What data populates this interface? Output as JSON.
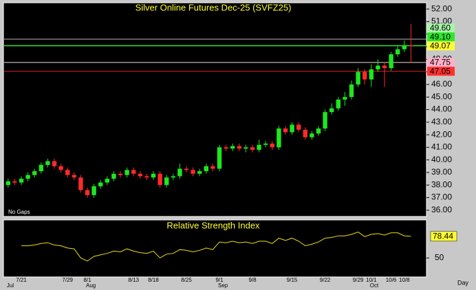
{
  "chart_data": [
    {
      "type": "candlestick",
      "title": "Silver Online Futures Dec-25 (SVFZ25)",
      "annotation": "No Gaps",
      "xlabel": "Day",
      "categories": [
        null,
        null,
        "7/21",
        null,
        null,
        null,
        null,
        null,
        null,
        "7/29",
        null,
        null,
        "8/1",
        null,
        null,
        null,
        null,
        null,
        null,
        "8/13",
        null,
        null,
        "8/18",
        null,
        null,
        null,
        null,
        "8/25",
        null,
        null,
        null,
        null,
        "9/1",
        null,
        null,
        null,
        null,
        "9/8",
        null,
        null,
        null,
        null,
        null,
        "9/15",
        null,
        null,
        null,
        null,
        "9/22",
        null,
        null,
        null,
        null,
        "9/29",
        null,
        "10/1",
        null,
        null,
        "10/6",
        null,
        "10/8",
        null
      ],
      "months": [
        "Jul",
        null,
        null,
        null,
        null,
        null,
        null,
        null,
        null,
        null,
        null,
        null,
        "Aug",
        null,
        null,
        null,
        null,
        null,
        null,
        null,
        null,
        null,
        null,
        null,
        null,
        null,
        null,
        null,
        null,
        null,
        null,
        null,
        "Sep",
        null,
        null,
        null,
        null,
        null,
        null,
        null,
        null,
        null,
        null,
        null,
        null,
        null,
        null,
        null,
        null,
        null,
        null,
        null,
        null,
        null,
        null,
        "Oct",
        null,
        null,
        null,
        null,
        null,
        null
      ],
      "open": [
        38.0,
        38.3,
        38.2,
        38.5,
        38.8,
        39.1,
        39.6,
        39.9,
        39.5,
        39.2,
        38.8,
        38.6,
        37.6,
        37.2,
        37.9,
        38.2,
        38.5,
        38.9,
        38.8,
        39.2,
        38.9,
        38.7,
        38.6,
        38.9,
        38.0,
        38.6,
        38.7,
        39.3,
        39.2,
        38.9,
        39.1,
        39.5,
        39.3,
        41.0,
        40.9,
        41.1,
        40.9,
        41.0,
        40.8,
        41.2,
        41.3,
        41.0,
        42.5,
        42.2,
        42.8,
        42.4,
        41.8,
        42.1,
        42.5,
        43.8,
        44.1,
        44.8,
        45.0,
        46.0,
        47.0,
        46.4,
        47.2,
        47.5,
        47.3,
        48.4,
        48.8,
        49.1
      ],
      "high": [
        38.5,
        38.5,
        38.7,
        39.0,
        39.3,
        39.8,
        40.1,
        40.1,
        39.7,
        39.4,
        39.0,
        38.8,
        37.8,
        38.1,
        38.4,
        38.7,
        39.1,
        39.1,
        39.4,
        39.4,
        39.1,
        38.9,
        39.1,
        39.1,
        38.8,
        38.9,
        39.7,
        39.5,
        39.4,
        39.3,
        39.7,
        39.7,
        41.2,
        41.2,
        41.3,
        41.3,
        41.2,
        41.2,
        41.6,
        41.5,
        41.5,
        42.7,
        42.7,
        43.0,
        43.0,
        42.6,
        42.3,
        42.7,
        44.0,
        44.5,
        45.0,
        45.4,
        46.3,
        47.3,
        47.2,
        47.6,
        48.0,
        47.8,
        48.6,
        49.1,
        49.5,
        50.8
      ],
      "low": [
        37.8,
        38.0,
        38.0,
        38.3,
        38.6,
        38.9,
        39.4,
        39.3,
        39.0,
        38.6,
        38.4,
        37.4,
        37.0,
        37.0,
        37.7,
        38.0,
        38.3,
        38.6,
        38.6,
        38.7,
        38.5,
        38.4,
        38.4,
        37.8,
        37.8,
        38.4,
        38.5,
        39.0,
        38.7,
        38.7,
        38.9,
        39.1,
        39.1,
        40.7,
        40.7,
        40.7,
        40.6,
        40.6,
        40.6,
        41.0,
        40.8,
        40.8,
        42.0,
        42.0,
        42.2,
        41.6,
        41.6,
        41.9,
        42.3,
        43.6,
        43.9,
        44.3,
        44.8,
        45.8,
        46.0,
        45.8,
        47.0,
        45.8,
        47.1,
        48.2,
        48.6,
        47.7
      ],
      "close": [
        38.3,
        38.2,
        38.5,
        38.8,
        39.1,
        39.6,
        39.9,
        39.5,
        39.2,
        38.8,
        38.6,
        37.6,
        37.2,
        37.9,
        38.2,
        38.5,
        38.9,
        38.8,
        39.2,
        38.9,
        38.7,
        38.6,
        38.9,
        38.0,
        38.6,
        38.7,
        39.3,
        39.2,
        38.9,
        39.1,
        39.5,
        39.3,
        41.0,
        40.9,
        41.1,
        40.9,
        41.0,
        40.8,
        41.2,
        41.3,
        41.0,
        42.5,
        42.2,
        42.8,
        42.4,
        41.8,
        42.1,
        42.5,
        43.8,
        44.1,
        44.8,
        45.0,
        46.0,
        47.0,
        46.4,
        47.2,
        47.5,
        47.3,
        48.4,
        48.8,
        49.1,
        49.07
      ],
      "up_color": "#1ee61e",
      "down_color": "#ff2a2a",
      "ylim": [
        35.5,
        52.5
      ],
      "yticks": [
        {
          "value": 36,
          "label": "36.00"
        },
        {
          "value": 37,
          "label": "37.00"
        },
        {
          "value": 38,
          "label": "38.00"
        },
        {
          "value": 39,
          "label": "39.00"
        },
        {
          "value": 40,
          "label": "40.00"
        },
        {
          "value": 41,
          "label": "41.00"
        },
        {
          "value": 42,
          "label": "42.00"
        },
        {
          "value": 43,
          "label": "43.00"
        },
        {
          "value": 44,
          "label": "44.00"
        },
        {
          "value": 45,
          "label": "45.00"
        },
        {
          "value": 46,
          "label": "46.00"
        },
        {
          "value": 47,
          "label": "47.00"
        },
        {
          "value": 48,
          "label": "48.00"
        },
        {
          "value": 49,
          "label": "49.00"
        },
        {
          "value": 50,
          "label": "50.00"
        },
        {
          "value": 51,
          "label": "51.00"
        },
        {
          "value": 52,
          "label": "52.00"
        }
      ],
      "levels": [
        {
          "value": 49.6,
          "label": "49.60",
          "color": "#b8b8b8",
          "label_color": "#a6f5a6"
        },
        {
          "value": 49.1,
          "label": "49.10",
          "color": "#2ee62e",
          "label_color": "#2ee62e"
        },
        {
          "value": 49.07,
          "label": "49.07",
          "color": "#2ee62e",
          "label_color": "#ffff33"
        },
        {
          "value": 47.75,
          "label": "47.75",
          "color": "#f0e0e0",
          "label_color": "#ffb0c8"
        },
        {
          "value": 47.05,
          "label": "47.05",
          "color": "#e62020",
          "label_color": "#ff3030"
        }
      ]
    },
    {
      "type": "line",
      "title": "Relative Strength Index",
      "color": "#f0e010",
      "values": [
        null,
        null,
        66,
        66,
        67,
        69,
        70,
        67,
        66,
        63,
        62,
        50,
        46,
        52,
        54,
        56,
        59,
        58,
        62,
        59,
        57,
        56,
        59,
        50,
        55,
        56,
        61,
        60,
        58,
        60,
        63,
        61,
        71,
        70,
        72,
        70,
        71,
        69,
        72,
        72,
        69,
        76,
        73,
        76,
        72,
        66,
        68,
        71,
        76,
        77,
        79,
        79,
        81,
        84,
        78,
        81,
        82,
        80,
        83,
        83,
        79,
        78.44
      ],
      "ylim": [
        25,
        100
      ],
      "yticks": [
        50
      ]
    }
  ]
}
